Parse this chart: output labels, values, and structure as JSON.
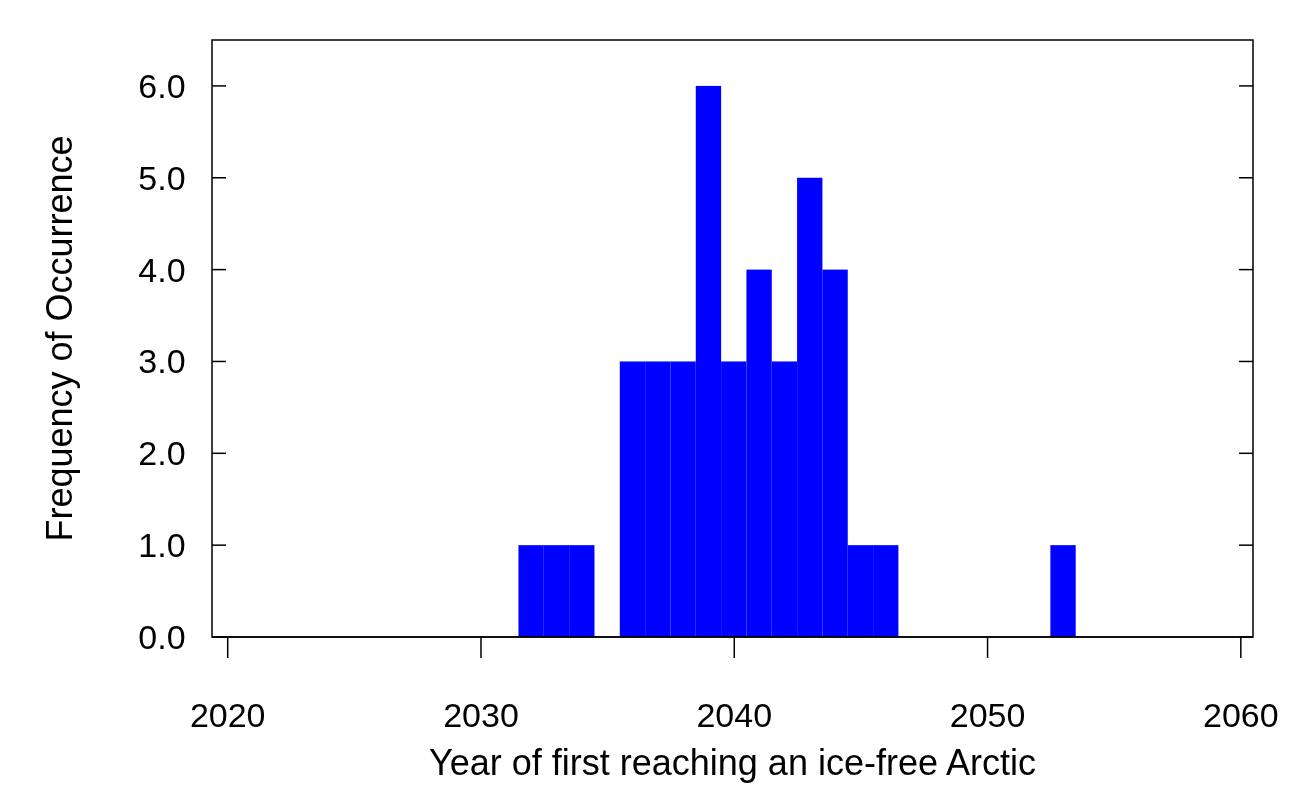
{
  "chart_data": {
    "type": "histogram",
    "xlabel": "Year of first reaching an ice-free Arctic",
    "ylabel": "Frequency of Occurrence",
    "color": "#0000ff",
    "bins": [
      2031.5,
      2032.5,
      2033.5,
      2034.5,
      2035.5,
      2036.5,
      2037.5,
      2038.5,
      2039.5,
      2040.5,
      2041.5,
      2042.5,
      2043.5,
      2044.5,
      2045.5,
      2046.5,
      2047.5,
      2048.5,
      2049.5,
      2050.5,
      2051.5,
      2052.5,
      2053.5
    ],
    "values": [
      1,
      1,
      1,
      0,
      3,
      3,
      3,
      6,
      3,
      4,
      3,
      5,
      4,
      1,
      1,
      0,
      0,
      0,
      0,
      0,
      0,
      1
    ],
    "xlim": [
      2019.4,
      2060.5
    ],
    "ylim": [
      0,
      6.5
    ],
    "xticks": [
      2020,
      2030,
      2040,
      2050,
      2060
    ],
    "yticks": [
      {
        "value": 0,
        "label": "0.0"
      },
      {
        "value": 1,
        "label": "1.0"
      },
      {
        "value": 2,
        "label": "2.0"
      },
      {
        "value": 3,
        "label": "3.0"
      },
      {
        "value": 4,
        "label": "4.0"
      },
      {
        "value": 5,
        "label": "5.0"
      },
      {
        "value": 6,
        "label": "6.0"
      }
    ],
    "grid": false
  }
}
